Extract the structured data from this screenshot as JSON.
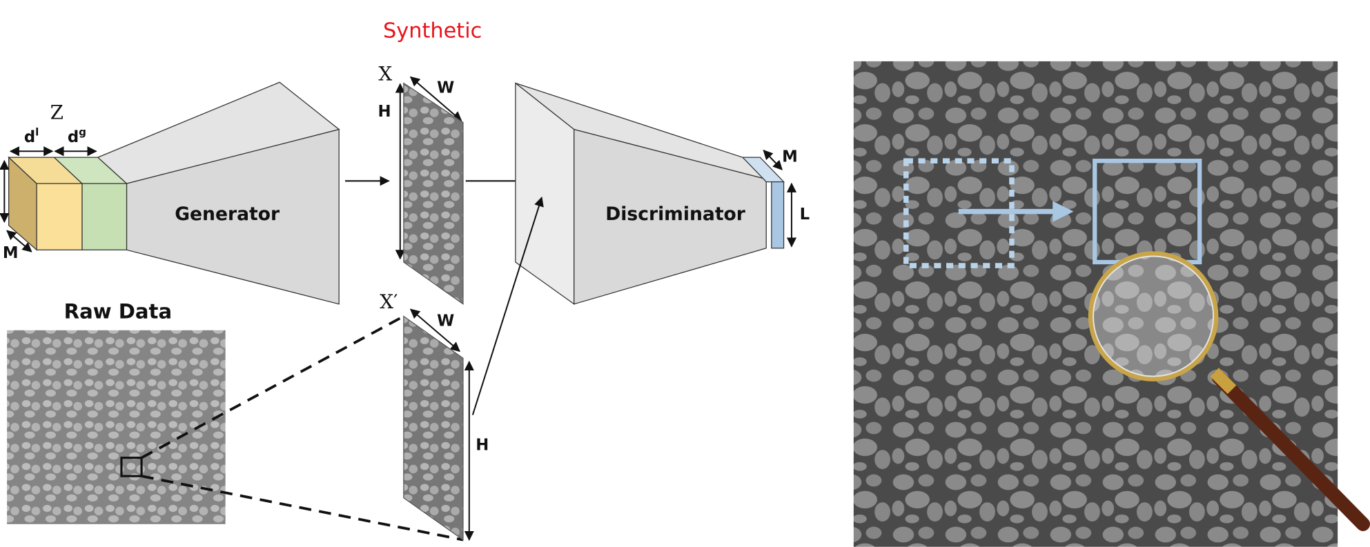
{
  "synthetic_label": "Synthetic",
  "generator": {
    "label": "Generator",
    "latent": "Z",
    "dl": {
      "base": "d",
      "sup": "l"
    },
    "dg": {
      "base": "d",
      "sup": "g"
    },
    "depth": "M"
  },
  "synthetic_sample": {
    "label": "X",
    "width": "W",
    "height": "H"
  },
  "real_sample": {
    "label": "X′",
    "width": "W",
    "height": "H"
  },
  "discriminator": {
    "label": "Discriminator",
    "output_depth": "M",
    "output_length": "L"
  },
  "raw_data": {
    "title": "Raw Data"
  }
}
